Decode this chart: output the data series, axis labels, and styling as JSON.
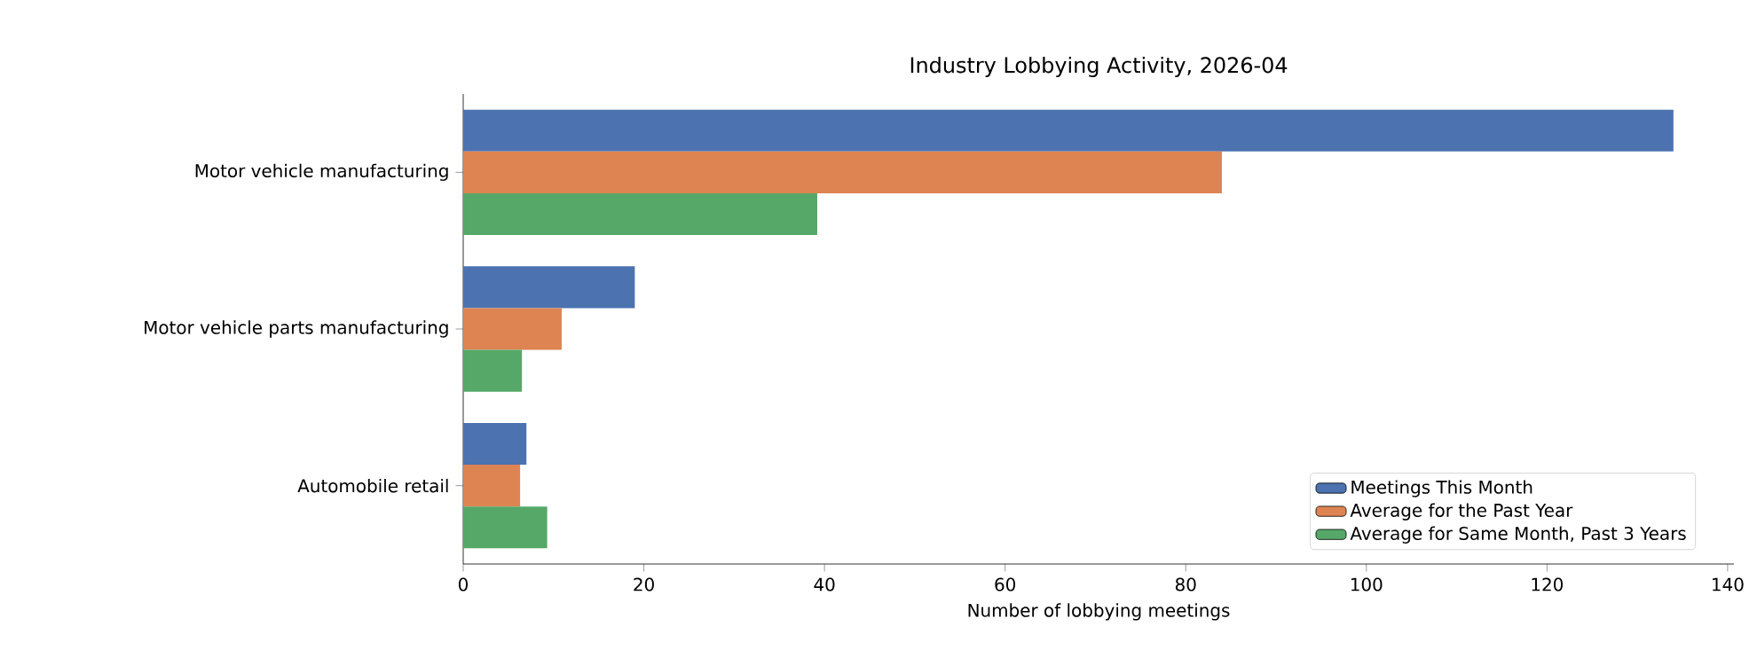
{
  "chart_data": {
    "type": "bar",
    "orientation": "horizontal",
    "title": "Industry Lobbying Activity, 2026-04",
    "xlabel": "Number of lobbying meetings",
    "categories": [
      "Motor vehicle manufacturing",
      "Motor vehicle parts manufacturing",
      "Automobile retail"
    ],
    "series": [
      {
        "name": "Meetings This Month",
        "color": "#4c72b0",
        "values": [
          134,
          19,
          7
        ]
      },
      {
        "name": "Average for the Past Year",
        "color": "#dd8452",
        "values": [
          84,
          10.9,
          6.3
        ]
      },
      {
        "name": "Average for Same Month, Past 3 Years",
        "color": "#55a868",
        "values": [
          39.2,
          6.5,
          9.3
        ]
      }
    ],
    "xlim": [
      0,
      140.7
    ],
    "xticks": [
      0,
      20,
      40,
      60,
      80,
      100,
      120,
      140
    ],
    "grid": false,
    "legend": "bottom right"
  }
}
